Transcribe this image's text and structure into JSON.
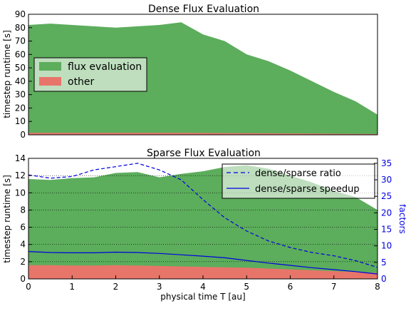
{
  "chart_data": [
    {
      "type": "area",
      "title": "Dense Flux Evaluation",
      "ylabel": "timestep runtime [s]",
      "xlabel": "",
      "xlim": [
        0,
        8
      ],
      "ylim": [
        0,
        90
      ],
      "yticks": [
        "0",
        "10",
        "20",
        "30",
        "40",
        "50",
        "60",
        "70",
        "80",
        "90"
      ],
      "grid": false,
      "legend_position": "left",
      "x": [
        0,
        0.5,
        1,
        1.5,
        2,
        2.5,
        3,
        3.5,
        4,
        4.5,
        5,
        5.5,
        6,
        6.5,
        7,
        7.5,
        8
      ],
      "series": [
        {
          "name": "flux evaluation",
          "color": "#5cad5c",
          "values": [
            82,
            83,
            82,
            81,
            80,
            81,
            82,
            84,
            75,
            70,
            60,
            55,
            48,
            40,
            32,
            25,
            15
          ]
        },
        {
          "name": "other",
          "color": "#e8756a",
          "values": [
            1.5,
            1.5,
            1.5,
            1.5,
            1.5,
            1.5,
            1.5,
            1.5,
            1.4,
            1.3,
            1.2,
            1.1,
            1.0,
            0.9,
            0.8,
            0.7,
            0.6
          ]
        }
      ]
    },
    {
      "type": "area",
      "title": "Sparse Flux Evaluation",
      "ylabel": "timestep runtime [s]",
      "xlabel": "physical time T [au]",
      "y2label": "factors",
      "xlim": [
        0,
        8
      ],
      "ylim": [
        0,
        14
      ],
      "y2lim": [
        0,
        36.5
      ],
      "xticks": [
        "0",
        "1",
        "2",
        "3",
        "4",
        "5",
        "6",
        "7",
        "8"
      ],
      "yticks": [
        "0",
        "2",
        "4",
        "6",
        "8",
        "10",
        "12",
        "14"
      ],
      "y2ticks": [
        "0",
        "5",
        "10",
        "15",
        "20",
        "25",
        "30",
        "35"
      ],
      "grid": true,
      "legend_position": "top-right",
      "x": [
        0,
        0.5,
        1,
        1.5,
        2,
        2.5,
        3,
        3.5,
        4,
        4.5,
        5,
        5.5,
        6,
        6.5,
        7,
        7.5,
        8
      ],
      "series": [
        {
          "name": "flux evaluation",
          "axis": "left",
          "color": "#5cad5c",
          "values": [
            11.6,
            11.5,
            11.7,
            11.8,
            12.3,
            12.4,
            11.8,
            12.2,
            12.5,
            13.0,
            13.2,
            12.8,
            12.0,
            11.2,
            10.2,
            9.5,
            8.0
          ]
        },
        {
          "name": "other",
          "axis": "left",
          "color": "#e8756a",
          "values": [
            1.6,
            1.6,
            1.55,
            1.55,
            1.6,
            1.55,
            1.5,
            1.45,
            1.4,
            1.35,
            1.3,
            1.2,
            1.1,
            1.0,
            0.9,
            0.8,
            0.7
          ]
        },
        {
          "name": "dense/sparse ratio",
          "axis": "right",
          "style": "dashed",
          "color": "#0000e0",
          "values": [
            31.5,
            30.5,
            31.0,
            33.0,
            34.0,
            35.0,
            33.0,
            30.0,
            24.0,
            18.5,
            14.5,
            11.5,
            9.5,
            8.0,
            7.0,
            5.5,
            3.5
          ]
        },
        {
          "name": "dense/sparse speedup",
          "axis": "right",
          "style": "solid",
          "color": "#0000e0",
          "values": [
            8.3,
            8.0,
            7.9,
            7.9,
            8.1,
            8.0,
            7.7,
            7.3,
            6.9,
            6.4,
            5.6,
            4.8,
            4.1,
            3.4,
            2.8,
            2.2,
            1.5
          ]
        }
      ]
    }
  ]
}
